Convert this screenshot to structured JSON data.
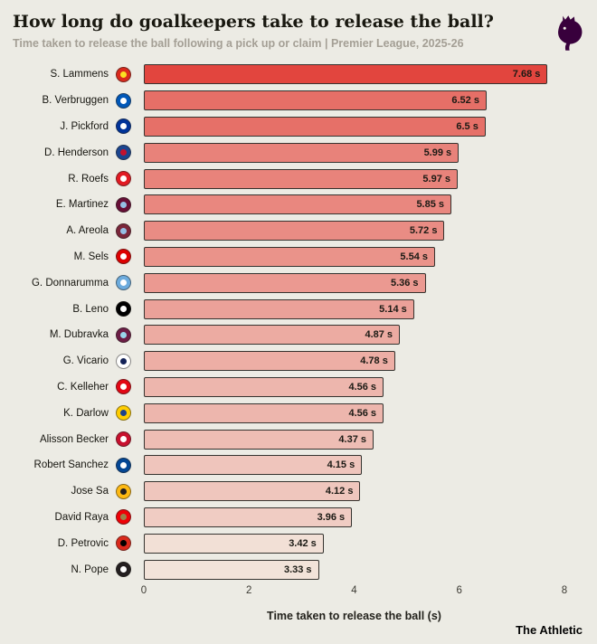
{
  "page": {
    "source": "The Athletic"
  },
  "colors": {
    "background": "#ecebe4",
    "bar_high": "#e2453e",
    "bar_low": "#f2e3d9",
    "bar_border": "#35332f",
    "title_text": "#191810",
    "subtitle_text": "#a49f95",
    "premier_league_purple": "#38003c"
  },
  "chart_data": {
    "type": "bar",
    "orientation": "horizontal",
    "title": "How long do goalkeepers take to release the ball?",
    "subtitle": "Time taken to release the ball following a pick up or claim | Premier League, 2025-26",
    "xlabel": "Time taken to release the ball (s)",
    "xlim": [
      0,
      8
    ],
    "xticks": [
      0,
      2,
      4,
      6,
      8
    ],
    "grid": false,
    "legend": false,
    "categories": [
      "S. Lammens",
      "B. Verbruggen",
      "J. Pickford",
      "D. Henderson",
      "R. Roefs",
      "E. Martinez",
      "A. Areola",
      "M. Sels",
      "G. Donnarumma",
      "B. Leno",
      "M. Dubravka",
      "G. Vicario",
      "C. Kelleher",
      "K. Darlow",
      "Alisson Becker",
      "Robert Sanchez",
      "Jose Sa",
      "David Raya",
      "D. Petrovic",
      "N. Pope"
    ],
    "values": [
      7.68,
      6.52,
      6.5,
      5.99,
      5.97,
      5.85,
      5.72,
      5.54,
      5.36,
      5.14,
      4.87,
      4.78,
      4.56,
      4.56,
      4.37,
      4.15,
      4.12,
      3.96,
      3.42,
      3.33
    ],
    "value_labels": [
      "7.68 s",
      "6.52 s",
      "6.5 s",
      "5.99 s",
      "5.97 s",
      "5.85 s",
      "5.72 s",
      "5.54 s",
      "5.36 s",
      "5.14 s",
      "4.87 s",
      "4.78 s",
      "4.56 s",
      "4.56 s",
      "4.37 s",
      "4.15 s",
      "4.12 s",
      "3.96 s",
      "3.42 s",
      "3.33 s"
    ],
    "badges": [
      {
        "club": "manchester-united",
        "colors": [
          "#da291c",
          "#fbe122"
        ]
      },
      {
        "club": "brighton",
        "colors": [
          "#0057b8",
          "#ffffff"
        ]
      },
      {
        "club": "everton",
        "colors": [
          "#003399",
          "#ffffff"
        ]
      },
      {
        "club": "crystal-palace",
        "colors": [
          "#1b458f",
          "#c4122e"
        ]
      },
      {
        "club": "sunderland",
        "colors": [
          "#e21a23",
          "#ffffff"
        ]
      },
      {
        "club": "aston-villa",
        "colors": [
          "#670e36",
          "#95bfe5"
        ]
      },
      {
        "club": "west-ham",
        "colors": [
          "#7a263a",
          "#95bfe5"
        ]
      },
      {
        "club": "nottingham-forest",
        "colors": [
          "#dd0000",
          "#ffffff"
        ]
      },
      {
        "club": "manchester-city",
        "colors": [
          "#6cabdd",
          "#ffffff"
        ]
      },
      {
        "club": "fulham",
        "colors": [
          "#000000",
          "#ffffff"
        ]
      },
      {
        "club": "burnley",
        "colors": [
          "#6c1d45",
          "#99d6ea"
        ]
      },
      {
        "club": "tottenham",
        "colors": [
          "#ffffff",
          "#132257"
        ]
      },
      {
        "club": "brentford",
        "colors": [
          "#e30613",
          "#ffffff"
        ]
      },
      {
        "club": "leeds-united",
        "colors": [
          "#ffcd00",
          "#1d428a"
        ]
      },
      {
        "club": "liverpool",
        "colors": [
          "#c8102e",
          "#ffffff"
        ]
      },
      {
        "club": "chelsea",
        "colors": [
          "#034694",
          "#ffffff"
        ]
      },
      {
        "club": "wolves",
        "colors": [
          "#fdb913",
          "#231f20"
        ]
      },
      {
        "club": "arsenal",
        "colors": [
          "#ef0107",
          "#9c824a"
        ]
      },
      {
        "club": "bournemouth",
        "colors": [
          "#da291c",
          "#000000"
        ]
      },
      {
        "club": "newcastle",
        "colors": [
          "#241f20",
          "#ffffff"
        ]
      }
    ]
  }
}
